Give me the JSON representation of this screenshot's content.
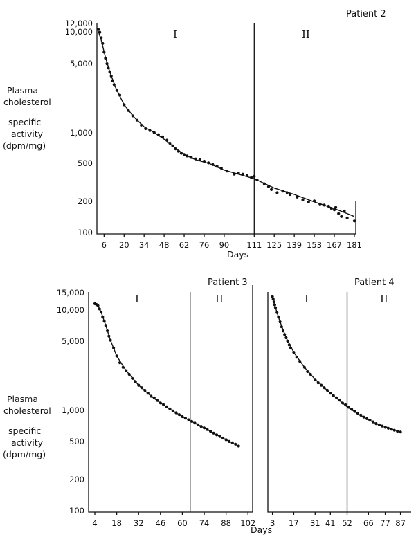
{
  "y_axis_label": [
    "Plasma",
    "cholesterol",
    "specific",
    "activity",
    "(dpm/mg)"
  ],
  "y_ticks": [
    {
      "value": 12000,
      "label": "12,000"
    },
    {
      "value": 10000,
      "label": "10,000"
    },
    {
      "value": 5000,
      "label": "5,000"
    },
    {
      "value": 1000,
      "label": "1,000"
    },
    {
      "value": 500,
      "label": "500"
    },
    {
      "value": 200,
      "label": "200"
    },
    {
      "value": 100,
      "label": "100"
    }
  ],
  "y_ticks_bottom": [
    {
      "value": 15000,
      "label": "15,000"
    },
    {
      "value": 10000,
      "label": "10,000"
    },
    {
      "value": 5000,
      "label": "5,000"
    },
    {
      "value": 1000,
      "label": "1,000"
    },
    {
      "value": 500,
      "label": "500"
    },
    {
      "value": 200,
      "label": "200"
    },
    {
      "value": 100,
      "label": "100"
    }
  ],
  "phase_labels": {
    "first": "I",
    "second": "II"
  },
  "chart_data": [
    {
      "type": "scatter",
      "title": "Patient 2",
      "xlabel": "Days",
      "ylabel": "Plasma cholesterol specific activity (dpm/mg)",
      "y_scale": "log",
      "xlim": [
        1,
        182
      ],
      "ylim": [
        100,
        12000
      ],
      "x_ticks": [
        6,
        20,
        34,
        48,
        62,
        76,
        90,
        111,
        125,
        139,
        153,
        167,
        181
      ],
      "phase_boundary_day": 111,
      "curve": [
        [
          2,
          11000
        ],
        [
          4,
          9000
        ],
        [
          7,
          6000
        ],
        [
          10,
          4300
        ],
        [
          14,
          3000
        ],
        [
          20,
          2000
        ],
        [
          27,
          1500
        ],
        [
          34,
          1200
        ],
        [
          41,
          1050
        ],
        [
          48,
          900
        ],
        [
          55,
          750
        ],
        [
          62,
          630
        ],
        [
          70,
          560
        ],
        [
          80,
          510
        ],
        [
          90,
          440
        ],
        [
          100,
          400
        ],
        [
          111,
          360
        ],
        [
          125,
          290
        ],
        [
          139,
          250
        ],
        [
          153,
          210
        ],
        [
          167,
          180
        ],
        [
          181,
          150
        ]
      ],
      "points": [
        [
          2,
          11500
        ],
        [
          3,
          10800
        ],
        [
          4,
          9500
        ],
        [
          5,
          8300
        ],
        [
          6,
          6800
        ],
        [
          7,
          5900
        ],
        [
          8,
          5200
        ],
        [
          9,
          4700
        ],
        [
          10,
          4300
        ],
        [
          11,
          3900
        ],
        [
          12,
          3500
        ],
        [
          13,
          3200
        ],
        [
          15,
          2800
        ],
        [
          17,
          2500
        ],
        [
          20,
          2000
        ],
        [
          23,
          1750
        ],
        [
          26,
          1550
        ],
        [
          29,
          1400
        ],
        [
          32,
          1250
        ],
        [
          35,
          1150
        ],
        [
          38,
          1100
        ],
        [
          41,
          1050
        ],
        [
          44,
          1000
        ],
        [
          47,
          950
        ],
        [
          50,
          880
        ],
        [
          52,
          820
        ],
        [
          54,
          770
        ],
        [
          56,
          720
        ],
        [
          58,
          680
        ],
        [
          60,
          650
        ],
        [
          62,
          630
        ],
        [
          64,
          610
        ],
        [
          67,
          590
        ],
        [
          70,
          570
        ],
        [
          73,
          560
        ],
        [
          76,
          540
        ],
        [
          79,
          520
        ],
        [
          82,
          500
        ],
        [
          85,
          480
        ],
        [
          88,
          460
        ],
        [
          92,
          430
        ],
        [
          97,
          400
        ],
        [
          100,
          410
        ],
        [
          103,
          400
        ],
        [
          106,
          390
        ],
        [
          109,
          370
        ],
        [
          111,
          380
        ],
        [
          113,
          350
        ],
        [
          118,
          320
        ],
        [
          121,
          300
        ],
        [
          123,
          280
        ],
        [
          127,
          260
        ],
        [
          131,
          270
        ],
        [
          134,
          260
        ],
        [
          136,
          250
        ],
        [
          141,
          235
        ],
        [
          145,
          220
        ],
        [
          149,
          210
        ],
        [
          153,
          215
        ],
        [
          157,
          200
        ],
        [
          160,
          195
        ],
        [
          163,
          190
        ],
        [
          165,
          180
        ],
        [
          167,
          175
        ],
        [
          168,
          185
        ],
        [
          170,
          160
        ],
        [
          172,
          150
        ],
        [
          174,
          170
        ],
        [
          176,
          145
        ],
        [
          181,
          135
        ]
      ]
    },
    {
      "type": "scatter",
      "title": "Patient 3",
      "xlabel": "",
      "ylabel": "Plasma cholesterol specific activity (dpm/mg)",
      "y_scale": "log",
      "xlim": [
        0,
        105
      ],
      "ylim": [
        100,
        15000
      ],
      "x_ticks": [
        4,
        18,
        32,
        46,
        60,
        74,
        88,
        102
      ],
      "phase_boundary_day": 65,
      "curve": [
        [
          4,
          11500
        ],
        [
          6,
          11000
        ],
        [
          8,
          9500
        ],
        [
          11,
          7000
        ],
        [
          14,
          5000
        ],
        [
          18,
          3500
        ],
        [
          24,
          2500
        ],
        [
          32,
          1800
        ],
        [
          40,
          1400
        ],
        [
          46,
          1200
        ],
        [
          54,
          1000
        ],
        [
          60,
          880
        ],
        [
          65,
          800
        ],
        [
          74,
          680
        ],
        [
          82,
          580
        ],
        [
          88,
          520
        ],
        [
          96,
          450
        ]
      ],
      "points": [
        [
          4,
          11500
        ],
        [
          5,
          11300
        ],
        [
          6,
          11000
        ],
        [
          7,
          10200
        ],
        [
          8,
          9500
        ],
        [
          9,
          8500
        ],
        [
          10,
          7700
        ],
        [
          11,
          7000
        ],
        [
          12,
          6200
        ],
        [
          13,
          5500
        ],
        [
          14,
          5000
        ],
        [
          16,
          4200
        ],
        [
          18,
          3500
        ],
        [
          20,
          3000
        ],
        [
          22,
          2700
        ],
        [
          24,
          2500
        ],
        [
          26,
          2300
        ],
        [
          28,
          2100
        ],
        [
          30,
          1950
        ],
        [
          32,
          1800
        ],
        [
          34,
          1700
        ],
        [
          36,
          1600
        ],
        [
          38,
          1500
        ],
        [
          40,
          1400
        ],
        [
          42,
          1350
        ],
        [
          44,
          1270
        ],
        [
          46,
          1200
        ],
        [
          48,
          1150
        ],
        [
          50,
          1100
        ],
        [
          52,
          1050
        ],
        [
          54,
          1000
        ],
        [
          56,
          960
        ],
        [
          58,
          920
        ],
        [
          60,
          880
        ],
        [
          62,
          850
        ],
        [
          64,
          820
        ],
        [
          66,
          790
        ],
        [
          68,
          760
        ],
        [
          70,
          730
        ],
        [
          72,
          705
        ],
        [
          74,
          680
        ],
        [
          76,
          655
        ],
        [
          78,
          630
        ],
        [
          80,
          605
        ],
        [
          82,
          580
        ],
        [
          84,
          560
        ],
        [
          86,
          540
        ],
        [
          88,
          520
        ],
        [
          90,
          500
        ],
        [
          92,
          485
        ],
        [
          94,
          470
        ],
        [
          96,
          450
        ]
      ]
    },
    {
      "type": "scatter",
      "title": "Patient 4",
      "xlabel": "",
      "ylabel": "",
      "y_scale": "log",
      "xlim": [
        0,
        94
      ],
      "ylim": [
        100,
        15000
      ],
      "x_ticks": [
        3,
        17,
        31,
        41,
        52,
        66,
        77,
        87
      ],
      "phase_boundary_day": 52,
      "curve": [
        [
          3,
          13000
        ],
        [
          5,
          10500
        ],
        [
          8,
          7600
        ],
        [
          12,
          5300
        ],
        [
          17,
          3800
        ],
        [
          24,
          2700
        ],
        [
          31,
          2050
        ],
        [
          41,
          1500
        ],
        [
          52,
          1100
        ],
        [
          60,
          920
        ],
        [
          66,
          820
        ],
        [
          72,
          740
        ],
        [
          77,
          700
        ],
        [
          83,
          650
        ],
        [
          87,
          620
        ]
      ],
      "points": [
        [
          3,
          13500
        ],
        [
          3.5,
          12800
        ],
        [
          4,
          12000
        ],
        [
          4.5,
          11200
        ],
        [
          5,
          10500
        ],
        [
          6,
          9400
        ],
        [
          7,
          8500
        ],
        [
          8,
          7600
        ],
        [
          9,
          6800
        ],
        [
          10,
          6200
        ],
        [
          11,
          5700
        ],
        [
          12,
          5300
        ],
        [
          13,
          4900
        ],
        [
          14,
          4500
        ],
        [
          15,
          4200
        ],
        [
          17,
          3800
        ],
        [
          19,
          3400
        ],
        [
          21,
          3100
        ],
        [
          24,
          2700
        ],
        [
          26,
          2450
        ],
        [
          28,
          2300
        ],
        [
          31,
          2050
        ],
        [
          33,
          1900
        ],
        [
          35,
          1800
        ],
        [
          37,
          1700
        ],
        [
          39,
          1600
        ],
        [
          41,
          1500
        ],
        [
          43,
          1420
        ],
        [
          45,
          1350
        ],
        [
          47,
          1280
        ],
        [
          49,
          1200
        ],
        [
          51,
          1150
        ],
        [
          53,
          1090
        ],
        [
          55,
          1040
        ],
        [
          57,
          990
        ],
        [
          59,
          950
        ],
        [
          61,
          910
        ],
        [
          63,
          870
        ],
        [
          65,
          840
        ],
        [
          67,
          810
        ],
        [
          69,
          780
        ],
        [
          71,
          750
        ],
        [
          73,
          730
        ],
        [
          75,
          710
        ],
        [
          77,
          690
        ],
        [
          79,
          675
        ],
        [
          81,
          660
        ],
        [
          83,
          645
        ],
        [
          85,
          630
        ],
        [
          87,
          620
        ]
      ]
    }
  ]
}
